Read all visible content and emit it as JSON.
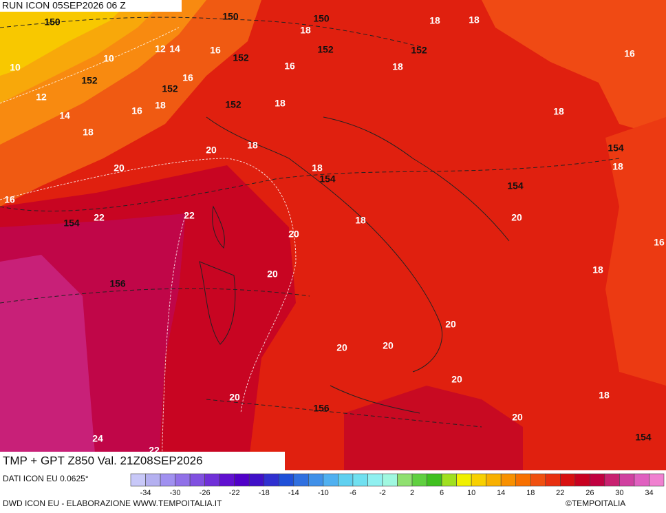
{
  "header": {
    "run": "RUN ICON 05SEP2026 06 Z"
  },
  "map_labels": [
    "150",
    "150",
    "150",
    "18",
    "18",
    "10",
    "10",
    "12",
    "14",
    "16",
    "152",
    "18",
    "152",
    "152",
    "16",
    "18",
    "16",
    "152",
    "16",
    "152",
    "12",
    "16",
    "18",
    "152",
    "18",
    "14",
    "18",
    "18",
    "18",
    "20",
    "154",
    "18",
    "20",
    "18",
    "154",
    "154",
    "16",
    "154",
    "22",
    "22",
    "18",
    "20",
    "20",
    "16",
    "18",
    "20",
    "156",
    "20",
    "20",
    "20",
    "20",
    "18",
    "20",
    "156",
    "20",
    "24",
    "154",
    "22"
  ],
  "footer": {
    "title": "TMP + GPT Z850 Val. 21Z08SEP2026",
    "source": "DATI ICON EU 0.0625°",
    "credit": "DWD ICON EU - ELABORAZIONE WWW.TEMPOITALIA.IT",
    "copyright": "©TEMPOITALIA"
  },
  "colorbar": {
    "labels": [
      "-34",
      "-30",
      "-26",
      "-22",
      "-18",
      "-14",
      "-10",
      "-6",
      "-2",
      "2",
      "6",
      "10",
      "14",
      "18",
      "22",
      "26",
      "30",
      "34"
    ],
    "colors": [
      "#c8c8f8",
      "#b4b0f0",
      "#a090f0",
      "#9070e8",
      "#8050e0",
      "#7030d8",
      "#6010d0",
      "#5000c8",
      "#4010c8",
      "#3030d0",
      "#2050d8",
      "#3070e0",
      "#4090e8",
      "#50b0f0",
      "#60d0f0",
      "#70e0f0",
      "#90f0f0",
      "#a0f8e0",
      "#90e070",
      "#60d040",
      "#40c020",
      "#a0e020",
      "#f0f000",
      "#f8d000",
      "#f8b000",
      "#f89000",
      "#f87000",
      "#f05010",
      "#e83010",
      "#d81010",
      "#c80020",
      "#c00040",
      "#c82070",
      "#d040a0",
      "#e060c0",
      "#f080d0"
    ]
  }
}
